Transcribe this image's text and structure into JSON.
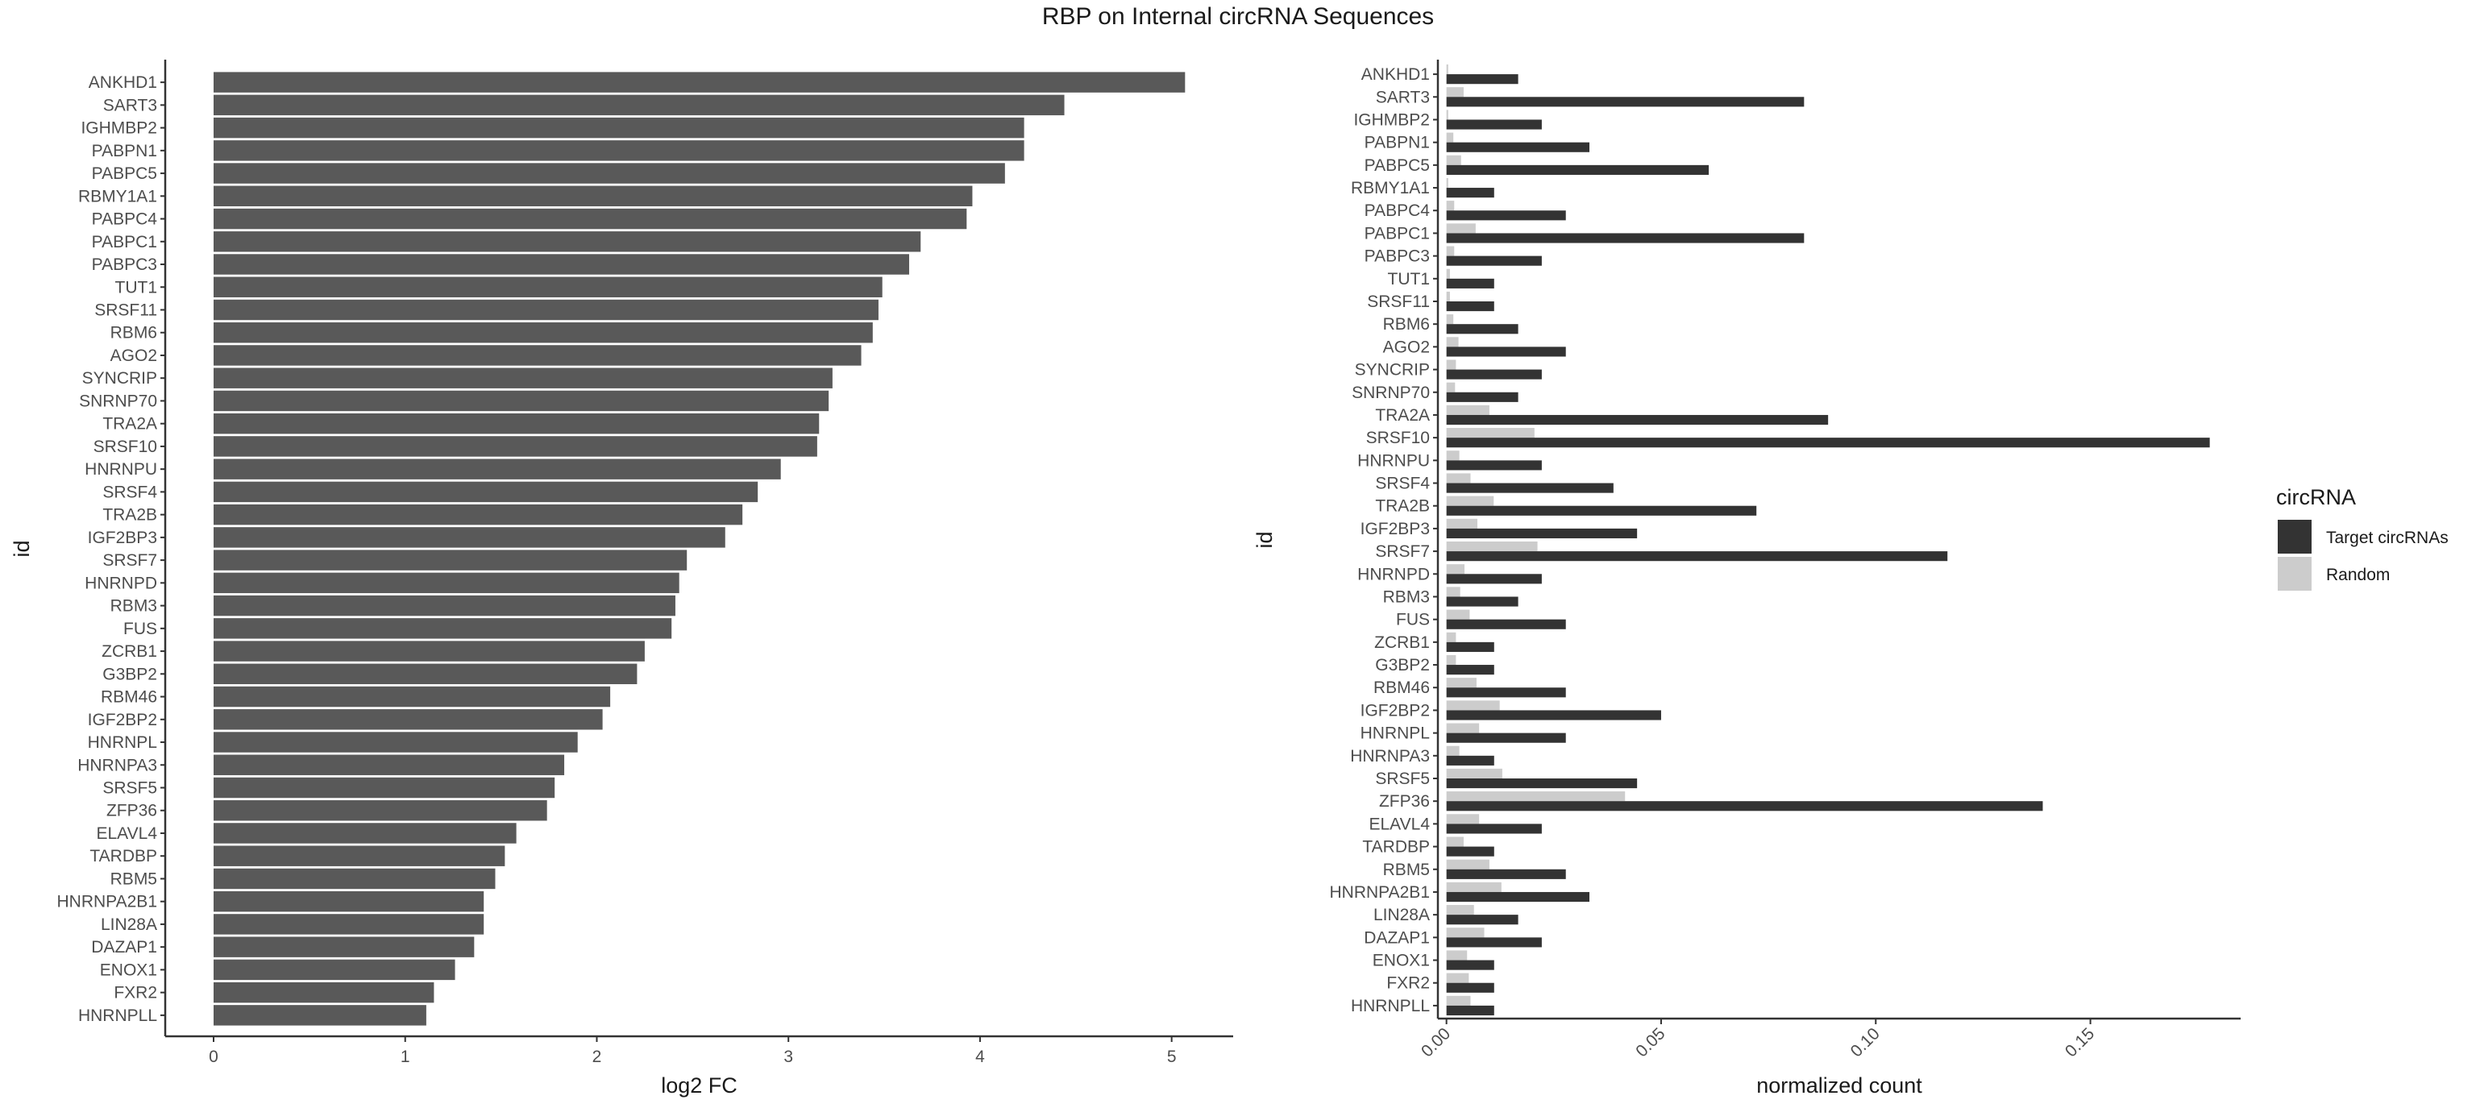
{
  "title": "RBP on Internal circRNA Sequences",
  "chart_data": [
    {
      "type": "bar",
      "orientation": "horizontal",
      "xlabel": "log2 FC",
      "ylabel": "id",
      "xlim": [
        0,
        5.3
      ],
      "xticks": [
        "0",
        "1",
        "2",
        "3",
        "4",
        "5"
      ],
      "bar_color": "#595959",
      "grid": false,
      "categories": [
        "ANKHD1",
        "SART3",
        "IGHMBP2",
        "PABPN1",
        "PABPC5",
        "RBMY1A1",
        "PABPC4",
        "PABPC1",
        "PABPC3",
        "TUT1",
        "SRSF11",
        "RBM6",
        "AGO2",
        "SYNCRIP",
        "SNRNP70",
        "TRA2A",
        "SRSF10",
        "HNRNPU",
        "SRSF4",
        "TRA2B",
        "IGF2BP3",
        "SRSF7",
        "HNRNPD",
        "RBM3",
        "FUS",
        "ZCRB1",
        "G3BP2",
        "RBM46",
        "IGF2BP2",
        "HNRNPL",
        "HNRNPA3",
        "SRSF5",
        "ZFP36",
        "ELAVL4",
        "TARDBP",
        "RBM5",
        "HNRNPA2B1",
        "LIN28A",
        "DAZAP1",
        "ENOX1",
        "FXR2",
        "HNRNPLL"
      ],
      "values": [
        5.07,
        4.44,
        4.23,
        4.23,
        4.13,
        3.96,
        3.93,
        3.69,
        3.63,
        3.49,
        3.47,
        3.44,
        3.38,
        3.23,
        3.21,
        3.16,
        3.15,
        2.96,
        2.84,
        2.76,
        2.67,
        2.47,
        2.43,
        2.41,
        2.39,
        2.25,
        2.21,
        2.07,
        2.03,
        1.9,
        1.83,
        1.78,
        1.74,
        1.58,
        1.52,
        1.47,
        1.41,
        1.41,
        1.36,
        1.26,
        1.15,
        1.11
      ]
    },
    {
      "type": "bar",
      "orientation": "horizontal",
      "grouped": true,
      "xlabel": "normalized count",
      "ylabel": "id",
      "xlim": [
        -0.002,
        0.185
      ],
      "xticks": [
        "0.00",
        "0.05",
        "0.10",
        "0.15"
      ],
      "grid": false,
      "legend": {
        "title": "circRNA",
        "position": "right"
      },
      "categories": [
        "ANKHD1",
        "SART3",
        "IGHMBP2",
        "PABPN1",
        "PABPC5",
        "RBMY1A1",
        "PABPC4",
        "PABPC1",
        "PABPC3",
        "TUT1",
        "SRSF11",
        "RBM6",
        "AGO2",
        "SYNCRIP",
        "SNRNP70",
        "TRA2A",
        "SRSF10",
        "HNRNPU",
        "SRSF4",
        "TRA2B",
        "IGF2BP3",
        "SRSF7",
        "HNRNPD",
        "RBM3",
        "FUS",
        "ZCRB1",
        "G3BP2",
        "RBM46",
        "IGF2BP2",
        "HNRNPL",
        "HNRNPA3",
        "SRSF5",
        "ZFP36",
        "ELAVL4",
        "TARDBP",
        "RBM5",
        "HNRNPA2B1",
        "LIN28A",
        "DAZAP1",
        "ENOX1",
        "FXR2",
        "HNRNPLL"
      ],
      "series": [
        {
          "name": "Target circRNAs",
          "color": "#333333",
          "values": [
            0.0167,
            0.0833,
            0.0222,
            0.0333,
            0.0611,
            0.0111,
            0.0278,
            0.0833,
            0.0222,
            0.0111,
            0.0111,
            0.0167,
            0.0278,
            0.0222,
            0.0167,
            0.0889,
            0.1778,
            0.0222,
            0.0389,
            0.0722,
            0.0444,
            0.1167,
            0.0222,
            0.0167,
            0.0278,
            0.0111,
            0.0111,
            0.0278,
            0.05,
            0.0278,
            0.0111,
            0.0444,
            0.1389,
            0.0222,
            0.0111,
            0.0278,
            0.0333,
            0.0167,
            0.0222,
            0.0111,
            0.0111,
            0.0111
          ]
        },
        {
          "name": "Random",
          "color": "#cccccc",
          "values": [
            0.0004,
            0.004,
            0.0004,
            0.0016,
            0.0034,
            0.0004,
            0.0018,
            0.0068,
            0.0018,
            0.0008,
            0.0008,
            0.0016,
            0.0028,
            0.0022,
            0.002,
            0.01,
            0.0205,
            0.003,
            0.0056,
            0.011,
            0.0072,
            0.0212,
            0.0042,
            0.0032,
            0.0054,
            0.0022,
            0.0022,
            0.007,
            0.0124,
            0.0076,
            0.003,
            0.013,
            0.0416,
            0.0076,
            0.004,
            0.01,
            0.0128,
            0.0064,
            0.0088,
            0.0048,
            0.0052,
            0.0056
          ]
        }
      ]
    }
  ]
}
